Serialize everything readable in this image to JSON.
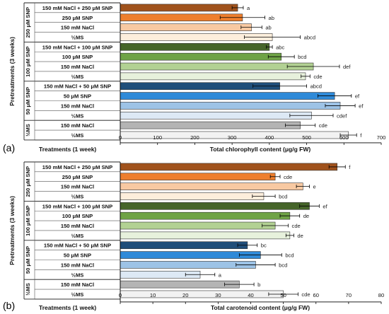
{
  "chart_data": [
    {
      "type": "bar",
      "orientation": "horizontal",
      "panel_label": "(a)",
      "xlabel": "Total chlorophyll content (μg/g FW)",
      "treatment_label": "Treatments (1 week)",
      "ylabel": "Pretreatments (3 weeks)",
      "xlim": [
        0,
        700
      ],
      "xticks": [
        "0",
        "100",
        "200",
        "300",
        "400",
        "500",
        "600",
        "700"
      ],
      "groups": [
        {
          "label": "250 μM SNP",
          "bars": [
            {
              "label": "150 mM NaCl + 250 μM SNP",
              "value": 315,
              "error": 15,
              "letter": "a",
              "color": "#a0521c"
            },
            {
              "label": "250 μM SNP",
              "value": 328,
              "error": 60,
              "letter": "ab",
              "color": "#ee7f2e"
            },
            {
              "label": "150 mM NaCl",
              "value": 352,
              "error": 28,
              "letter": "ab",
              "color": "#f8c9a2"
            },
            {
              "label": "½MS",
              "value": 408,
              "error": 75,
              "letter": "abcd",
              "color": "#fdeedc"
            }
          ]
        },
        {
          "label": "100 μM SNP",
          "bars": [
            {
              "label": "150 mM NaCl + 100 μM SNP",
              "value": 400,
              "error": 8,
              "letter": "abc",
              "color": "#46652a"
            },
            {
              "label": "100 μM SNP",
              "value": 432,
              "error": 35,
              "letter": "bcd",
              "color": "#6fa346"
            },
            {
              "label": "150 mM NaCl",
              "value": 518,
              "error": 70,
              "letter": "def",
              "color": "#b2d193"
            },
            {
              "label": "½MS",
              "value": 497,
              "error": 12,
              "letter": "cde",
              "color": "#e7f1dc"
            }
          ]
        },
        {
          "label": "50 μM SNP",
          "bars": [
            {
              "label": "150 mM NaCl + 50 μM SNP",
              "value": 428,
              "error": 72,
              "letter": "abcd",
              "color": "#1f4e7a"
            },
            {
              "label": "50 μM SNP",
              "value": 575,
              "error": 45,
              "letter": "ef",
              "color": "#2f8ad8"
            },
            {
              "label": "150 mM NaCl",
              "value": 590,
              "error": 40,
              "letter": "ef",
              "color": "#9dc3e6"
            },
            {
              "label": "½MS",
              "value": 513,
              "error": 58,
              "letter": "cdef",
              "color": "#dde9f5"
            }
          ]
        },
        {
          "label": "½MS",
          "bars": [
            {
              "label": "150 mM NaCl",
              "value": 483,
              "error": 40,
              "letter": "cde",
              "color": "#b4b4b4"
            },
            {
              "label": "½MS",
              "value": 612,
              "error": 22,
              "letter": "f",
              "color": "#f2f2f2"
            }
          ]
        }
      ]
    },
    {
      "type": "bar",
      "orientation": "horizontal",
      "panel_label": "(b)",
      "xlabel": "Total carotenoid content (μg/g FW)",
      "treatment_label": "Treatments (1 week)",
      "ylabel": "Pretreatments (3 weeks)",
      "xlim": [
        0,
        80
      ],
      "xticks": [
        "0",
        "10",
        "20",
        "30",
        "40",
        "50",
        "60",
        "70",
        "80"
      ],
      "groups": [
        {
          "label": "250 μM SNP",
          "bars": [
            {
              "label": "150 mM NaCl + 250 μM SNP",
              "value": 66.5,
              "error": 2.5,
              "letter": "f",
              "color": "#a0521c"
            },
            {
              "label": "250 μM SNP",
              "value": 47.5,
              "error": 1.5,
              "letter": "cde",
              "color": "#ee7f2e"
            },
            {
              "label": "150 mM NaCl",
              "value": 56,
              "error": 2,
              "letter": "e",
              "color": "#f8c9a2"
            },
            {
              "label": "½MS",
              "value": 44,
              "error": 3.5,
              "letter": "bcd",
              "color": "#fdeedc"
            }
          ]
        },
        {
          "label": "100 μM SNP",
          "bars": [
            {
              "label": "150 mM NaCl + 100 μM SNP",
              "value": 58,
              "error": 3,
              "letter": "ef",
              "color": "#46652a"
            },
            {
              "label": "100 μM SNP",
              "value": 52,
              "error": 3,
              "letter": "de",
              "color": "#6fa346"
            },
            {
              "label": "150 mM NaCl",
              "value": 47.5,
              "error": 4,
              "letter": "cde",
              "color": "#b2d193"
            },
            {
              "label": "½MS",
              "value": 52,
              "error": 1.2,
              "letter": "de",
              "color": "#e7f1dc"
            }
          ]
        },
        {
          "label": "50 μM SNP",
          "bars": [
            {
              "label": "150 mM NaCl + 50 μM SNP",
              "value": 39,
              "error": 3,
              "letter": "bc",
              "color": "#1f4e7a"
            },
            {
              "label": "50 μM SNP",
              "value": 43,
              "error": 6.5,
              "letter": "bcd",
              "color": "#2f8ad8"
            },
            {
              "label": "150 mM NaCl",
              "value": 41.5,
              "error": 6,
              "letter": "bcd",
              "color": "#9dc3e6"
            },
            {
              "label": "½MS",
              "value": 24.5,
              "error": 4.5,
              "letter": "a",
              "color": "#dde9f5"
            }
          ]
        },
        {
          "label": "½MS",
          "bars": [
            {
              "label": "150 mM NaCl",
              "value": 36.5,
              "error": 4.5,
              "letter": "b",
              "color": "#b4b4b4"
            },
            {
              "label": "½MS",
              "value": 50,
              "error": 4.5,
              "letter": "cde",
              "color": "#f2f2f2"
            }
          ]
        }
      ]
    }
  ]
}
